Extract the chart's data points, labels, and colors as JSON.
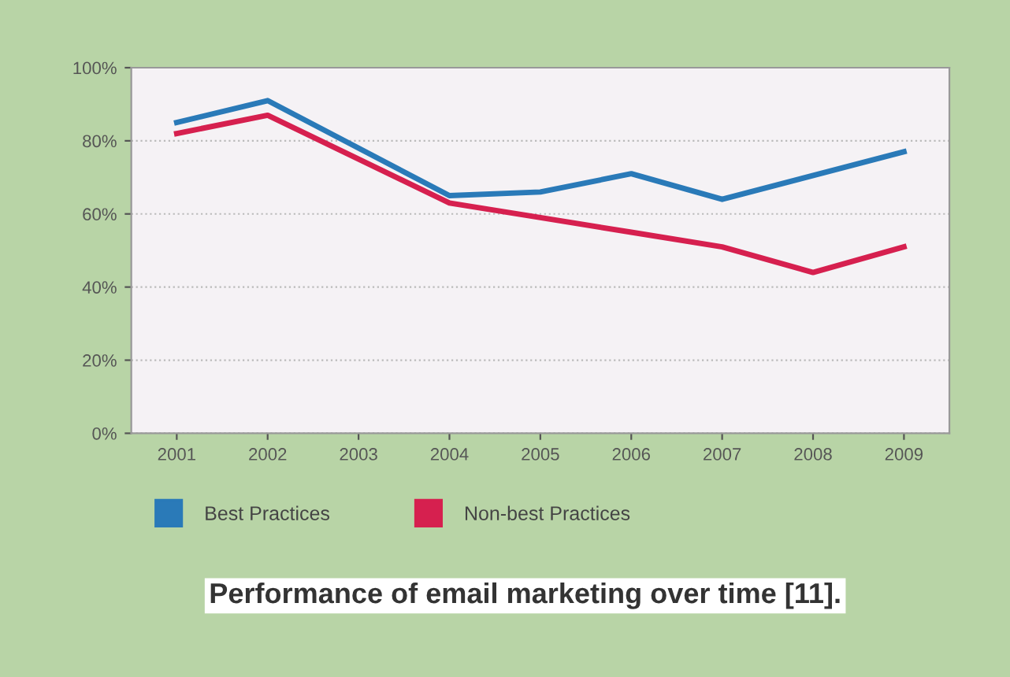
{
  "chart_data": {
    "type": "line",
    "title": "Performance of email marketing over time [11].",
    "xlim": [
      2000.5,
      2009.5
    ],
    "xticks": [
      2001,
      2002,
      2003,
      2004,
      2005,
      2006,
      2007,
      2008,
      2009
    ],
    "ylim": [
      0,
      100
    ],
    "yticks": [
      {
        "value": 0,
        "label": "0%"
      },
      {
        "value": 20,
        "label": "20%"
      },
      {
        "value": 40,
        "label": "40%"
      },
      {
        "value": 60,
        "label": "60%"
      },
      {
        "value": 80,
        "label": "80%"
      },
      {
        "value": 100,
        "label": "100%"
      }
    ],
    "grid": "y",
    "legend": "bottom",
    "marker": "none",
    "line_style": "solid",
    "series": [
      {
        "name": "Best Practices",
        "color": "#2a7ab8",
        "x": [
          2001,
          2002,
          2004,
          2005,
          2006,
          2007,
          2009
        ],
        "values": [
          85,
          91,
          65,
          66,
          71,
          64,
          77
        ]
      },
      {
        "name": "Non-best Practices",
        "color": "#d6204f",
        "x": [
          2001,
          2002,
          2004,
          2005,
          2006,
          2007,
          2008,
          2009
        ],
        "values": [
          82,
          87,
          63,
          59,
          55,
          51,
          44,
          51
        ]
      }
    ]
  }
}
